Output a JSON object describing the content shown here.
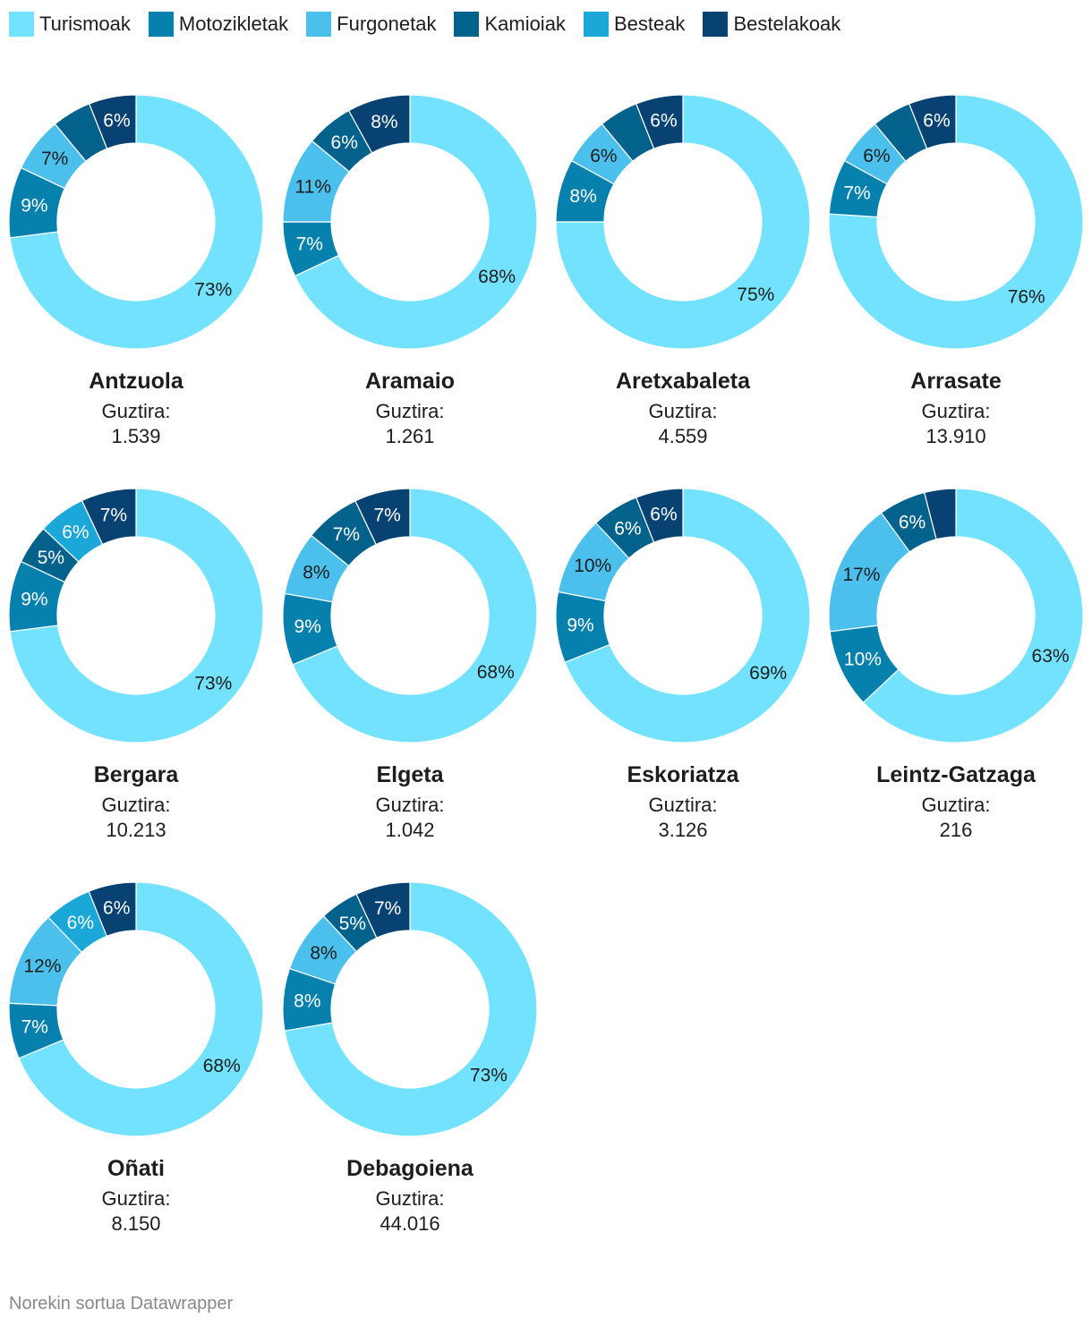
{
  "legend": [
    {
      "label": "Turismoak",
      "color": "#72e2ff"
    },
    {
      "label": "Motozikletak",
      "color": "#0681ad"
    },
    {
      "label": "Furgonetak",
      "color": "#4bc0ec"
    },
    {
      "label": "Kamioiak",
      "color": "#03628c"
    },
    {
      "label": "Besteak",
      "color": "#1ba7d8"
    },
    {
      "label": "Bestelakoak",
      "color": "#074272"
    }
  ],
  "footer": "Norekin sortua Datawrapper",
  "total_label": "Guztira:",
  "chart_data": {
    "type": "donut",
    "series_names": [
      "Turismoak",
      "Motozikletak",
      "Furgonetak",
      "Kamioiak",
      "Besteak",
      "Bestelakoak"
    ],
    "panels": [
      {
        "name": "Antzuola",
        "total": "1.539",
        "values": [
          73,
          9,
          7,
          5,
          0,
          6
        ],
        "labels": [
          "73%",
          "9%",
          "7%",
          "",
          "",
          "6%"
        ]
      },
      {
        "name": "Aramaio",
        "total": "1.261",
        "values": [
          68,
          7,
          11,
          6,
          0,
          8
        ],
        "labels": [
          "68%",
          "7%",
          "11%",
          "6%",
          "",
          "8%"
        ]
      },
      {
        "name": "Aretxabaleta",
        "total": "4.559",
        "values": [
          75,
          8,
          6,
          5,
          0,
          6
        ],
        "labels": [
          "75%",
          "8%",
          "6%",
          "",
          "",
          "6%"
        ]
      },
      {
        "name": "Arrasate",
        "total": "13.910",
        "values": [
          76,
          7,
          6,
          5,
          0,
          6
        ],
        "labels": [
          "76%",
          "7%",
          "6%",
          "",
          "",
          "6%"
        ]
      },
      {
        "name": "Bergara",
        "total": "10.213",
        "values": [
          73,
          9,
          0,
          5,
          6,
          7
        ],
        "labels": [
          "73%",
          "9%",
          "",
          "5%",
          "6%",
          "7%"
        ]
      },
      {
        "name": "Elgeta",
        "total": "1.042",
        "values": [
          68,
          9,
          8,
          7,
          0,
          7
        ],
        "labels": [
          "68%",
          "9%",
          "8%",
          "7%",
          "",
          "7%"
        ]
      },
      {
        "name": "Eskoriatza",
        "total": "3.126",
        "values": [
          69,
          9,
          10,
          6,
          0,
          6
        ],
        "labels": [
          "69%",
          "9%",
          "10%",
          "6%",
          "",
          "6%"
        ]
      },
      {
        "name": "Leintz-Gatzaga",
        "total": "216",
        "values": [
          63,
          10,
          17,
          6,
          0,
          4
        ],
        "labels": [
          "63%",
          "10%",
          "17%",
          "6%",
          "",
          ""
        ]
      },
      {
        "name": "Oñati",
        "total": "8.150",
        "values": [
          68,
          7,
          12,
          0,
          6,
          6
        ],
        "labels": [
          "68%",
          "7%",
          "12%",
          "",
          "6%",
          "6%"
        ]
      },
      {
        "name": "Debagoiena",
        "total": "44.016",
        "values": [
          73,
          8,
          8,
          5,
          0,
          7
        ],
        "labels": [
          "73%",
          "8%",
          "8%",
          "5%",
          "",
          "7%"
        ]
      }
    ]
  }
}
